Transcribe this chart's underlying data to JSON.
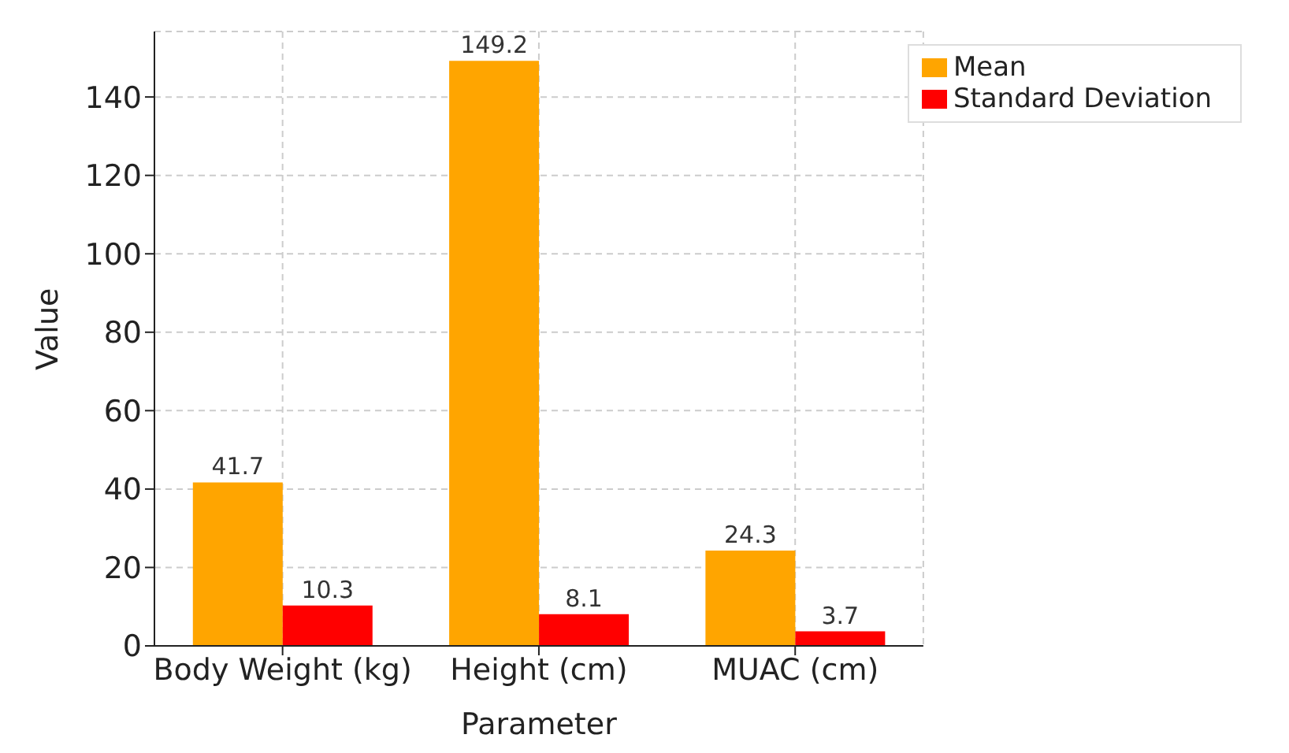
{
  "chart_data": {
    "type": "bar",
    "xlabel": "Parameter",
    "ylabel": "Value",
    "categories": [
      "Body Weight (kg)",
      "Height (cm)",
      "MUAC (cm)"
    ],
    "series": [
      {
        "name": "Mean",
        "color": "#ffa500",
        "values": [
          41.7,
          149.2,
          24.3
        ]
      },
      {
        "name": "Standard Deviation",
        "color": "#ff0000",
        "values": [
          10.3,
          8.1,
          3.7
        ]
      }
    ],
    "ylim": [
      0,
      156.7
    ],
    "yticks": [
      0,
      20,
      40,
      60,
      80,
      100,
      120,
      140
    ],
    "grid": true,
    "legend": "top right",
    "data_labels": true
  }
}
